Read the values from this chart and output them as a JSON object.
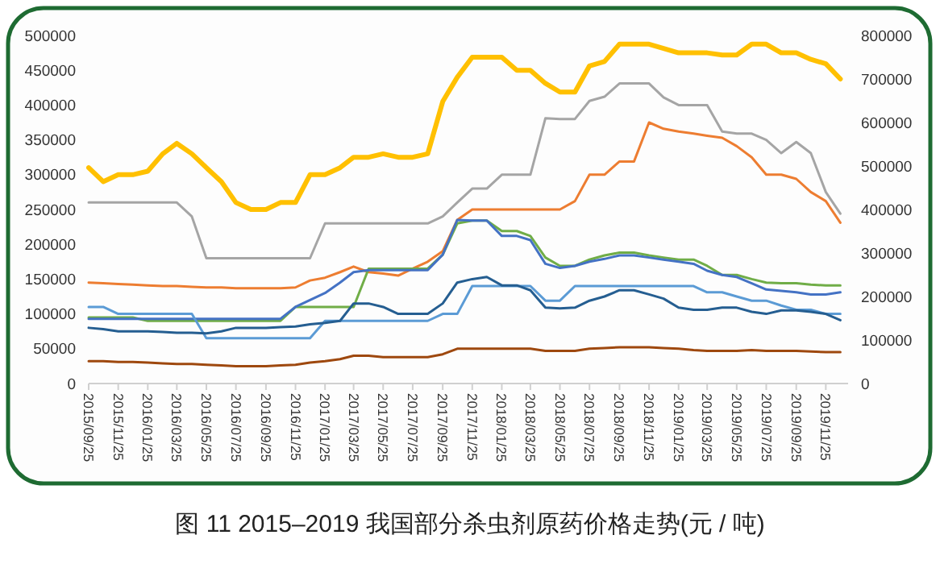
{
  "chart_data": {
    "type": "line",
    "title": "图 11 2015–2019 我国部分杀虫剂原药价格走势(元 / 吨)",
    "x": [
      "2015-09-25",
      "2015-10-25",
      "2015-11-25",
      "2015-12-25",
      "2016-01-25",
      "2016-02-25",
      "2016-03-25",
      "2016-04-25",
      "2016-05-25",
      "2016-06-25",
      "2016-07-25",
      "2016-08-25",
      "2016-09-25",
      "2016-10-25",
      "2016-11-25",
      "2016-12-25",
      "2017-01-25",
      "2017-02-25",
      "2017-03-25",
      "2017-04-25",
      "2017-05-25",
      "2017-06-25",
      "2017-07-25",
      "2017-08-25",
      "2017-09-25",
      "2017-10-25",
      "2017-11-25",
      "2017-12-25",
      "2018-01-25",
      "2018-02-25",
      "2018-03-25",
      "2018-04-25",
      "2018-05-25",
      "2018-06-25",
      "2018-07-25",
      "2018-08-25",
      "2018-09-25",
      "2018-10-25",
      "2018-11-25",
      "2018-12-25",
      "2019-01-25",
      "2019-02-25",
      "2019-03-25",
      "2019-04-25",
      "2019-05-25",
      "2019-06-25",
      "2019-07-25",
      "2019-08-25",
      "2019-09-25",
      "2019-10-25",
      "2019-11-25",
      "2019-12-25"
    ],
    "xlim": [
      "2015-09-25",
      "2020-01-10"
    ],
    "xticks": [
      {
        "value": "2015-09-25",
        "label": "2015/09/25"
      },
      {
        "value": "2015-11-25",
        "label": "2015/11/25"
      },
      {
        "value": "2016-01-25",
        "label": "2016/01/25"
      },
      {
        "value": "2016-03-25",
        "label": "2016/03/25"
      },
      {
        "value": "2016-05-25",
        "label": "2016/05/25"
      },
      {
        "value": "2016-07-25",
        "label": "2016/07/25"
      },
      {
        "value": "2016-09-25",
        "label": "2016/09/25"
      },
      {
        "value": "2016-11-25",
        "label": "2016/11/25"
      },
      {
        "value": "2017-01-25",
        "label": "2017/01/25"
      },
      {
        "value": "2017-03-25",
        "label": "2017/03/25"
      },
      {
        "value": "2017-05-25",
        "label": "2017/05/25"
      },
      {
        "value": "2017-07-25",
        "label": "2017/07/25"
      },
      {
        "value": "2017-09-25",
        "label": "2017/09/25"
      },
      {
        "value": "2017-11-25",
        "label": "2017/11/25"
      },
      {
        "value": "2018-01-25",
        "label": "2018/01/25"
      },
      {
        "value": "2018-03-25",
        "label": "2018/03/25"
      },
      {
        "value": "2018-05-25",
        "label": "2018/05/25"
      },
      {
        "value": "2018-07-25",
        "label": "2018/07/25"
      },
      {
        "value": "2018-09-25",
        "label": "2018/09/25"
      },
      {
        "value": "2018-11-25",
        "label": "2018/11/25"
      },
      {
        "value": "2019-01-25",
        "label": "2019/01/25"
      },
      {
        "value": "2019-03-25",
        "label": "2019/03/25"
      },
      {
        "value": "2019-05-25",
        "label": "2019/05/25"
      },
      {
        "value": "2019-07-25",
        "label": "2019/07/25"
      },
      {
        "value": "2019-09-25",
        "label": "2019/09/25"
      },
      {
        "value": "2019-11-25",
        "label": "2019/11/25"
      }
    ],
    "ylim": [
      0,
      500000
    ],
    "yticks": [
      0,
      50000,
      100000,
      150000,
      200000,
      250000,
      300000,
      350000,
      400000,
      450000,
      500000
    ],
    "y2lim": [
      0,
      800000
    ],
    "y2ticks": [
      0,
      100000,
      200000,
      300000,
      400000,
      500000,
      600000,
      700000,
      800000
    ],
    "series": [
      {
        "color": "#a5a5a5",
        "values": [
          260000,
          260000,
          260000,
          260000,
          260000,
          260000,
          260000,
          240000,
          180000,
          180000,
          180000,
          180000,
          180000,
          180000,
          180000,
          180000,
          230000,
          230000,
          230000,
          230000,
          230000,
          230000,
          230000,
          230000,
          240000,
          260000,
          280000,
          280000,
          300000,
          300000,
          300000,
          381000,
          380000,
          380000,
          406000,
          412000,
          431000,
          431000,
          431000,
          411000,
          400000,
          400000,
          400000,
          362000,
          359000,
          359000,
          350000,
          331000,
          347000,
          331000,
          275000,
          244000
        ]
      },
      {
        "color": "#ed7d31",
        "values": [
          145000,
          144000,
          143000,
          142000,
          141000,
          140000,
          140000,
          139000,
          138000,
          138000,
          137000,
          137000,
          137000,
          137000,
          138000,
          148000,
          152000,
          160000,
          168000,
          160000,
          158000,
          155000,
          165000,
          175000,
          190000,
          235000,
          250000,
          250000,
          250000,
          250000,
          250000,
          250000,
          250000,
          262000,
          300000,
          300000,
          319000,
          319000,
          375000,
          366000,
          362000,
          359000,
          356000,
          353000,
          341000,
          325000,
          300000,
          300000,
          294000,
          275000,
          262000,
          231000
        ]
      },
      {
        "color": "#70ad47",
        "values": [
          95000,
          95000,
          95000,
          95000,
          90000,
          90000,
          90000,
          90000,
          90000,
          90000,
          90000,
          90000,
          90000,
          90000,
          110000,
          110000,
          110000,
          110000,
          110000,
          165000,
          165000,
          165000,
          165000,
          165000,
          185000,
          230000,
          234000,
          234000,
          219000,
          219000,
          212000,
          181000,
          169000,
          169000,
          178000,
          184000,
          188000,
          188000,
          184000,
          181000,
          178000,
          178000,
          169000,
          156000,
          156000,
          150000,
          145000,
          144000,
          144000,
          142000,
          141000,
          141000
        ]
      },
      {
        "color": "#4472c4",
        "values": [
          93000,
          93000,
          93000,
          93000,
          93000,
          93000,
          93000,
          93000,
          93000,
          93000,
          93000,
          93000,
          93000,
          93000,
          110000,
          120000,
          130000,
          145000,
          160000,
          163000,
          163000,
          163000,
          163000,
          163000,
          185000,
          235000,
          234000,
          234000,
          212000,
          212000,
          206000,
          172000,
          166000,
          169000,
          175000,
          179000,
          184000,
          184000,
          181000,
          178000,
          175000,
          172000,
          162000,
          156000,
          153000,
          144000,
          135000,
          133000,
          131000,
          128000,
          128000,
          131000
        ]
      },
      {
        "color": "#5b9bd5",
        "values": [
          110000,
          110000,
          100000,
          100000,
          100000,
          100000,
          100000,
          100000,
          65000,
          65000,
          65000,
          65000,
          65000,
          65000,
          65000,
          65000,
          90000,
          90000,
          90000,
          90000,
          90000,
          90000,
          90000,
          90000,
          100000,
          100000,
          140000,
          140000,
          140000,
          140000,
          140000,
          119000,
          119000,
          140000,
          140000,
          140000,
          140000,
          140000,
          140000,
          140000,
          140000,
          140000,
          131000,
          131000,
          125000,
          119000,
          119000,
          112000,
          106000,
          106000,
          100000,
          100000
        ]
      },
      {
        "color": "#255e91",
        "values": [
          80000,
          78000,
          75000,
          75000,
          75000,
          74000,
          73000,
          73000,
          72000,
          75000,
          80000,
          80000,
          80000,
          81000,
          82000,
          85000,
          87000,
          90000,
          115000,
          115000,
          110000,
          100000,
          100000,
          100000,
          115000,
          145000,
          150000,
          153000,
          141000,
          141000,
          134000,
          109000,
          108000,
          109000,
          119000,
          125000,
          134000,
          134000,
          128000,
          122000,
          109000,
          106000,
          106000,
          109000,
          109000,
          103000,
          100000,
          105000,
          105000,
          103000,
          100000,
          91000
        ]
      },
      {
        "color": "#9e480e",
        "values": [
          32000,
          32000,
          31000,
          31000,
          30000,
          29000,
          28000,
          28000,
          27000,
          26000,
          25000,
          25000,
          25000,
          26000,
          27000,
          30000,
          32000,
          35000,
          40000,
          40000,
          38000,
          38000,
          38000,
          38000,
          42000,
          50000,
          50000,
          50000,
          50000,
          50000,
          50000,
          47000,
          47000,
          47000,
          50000,
          51000,
          52000,
          52000,
          52000,
          51000,
          50000,
          48000,
          47000,
          47000,
          47000,
          48000,
          47000,
          47000,
          47000,
          46000,
          45000,
          45000
        ]
      },
      {
        "color": "#ffc000",
        "axis": "y2",
        "values": [
          496000,
          464000,
          480000,
          480000,
          488000,
          528000,
          552000,
          528000,
          496000,
          464000,
          416000,
          400000,
          400000,
          416000,
          416000,
          480000,
          480000,
          496000,
          520000,
          520000,
          528000,
          520000,
          520000,
          528000,
          648000,
          704000,
          750000,
          750000,
          750000,
          720000,
          720000,
          690000,
          670000,
          670000,
          730000,
          740000,
          780000,
          780000,
          780000,
          770000,
          760000,
          760000,
          760000,
          755000,
          755000,
          780000,
          780000,
          760000,
          760000,
          745000,
          735000,
          700000
        ]
      }
    ]
  }
}
